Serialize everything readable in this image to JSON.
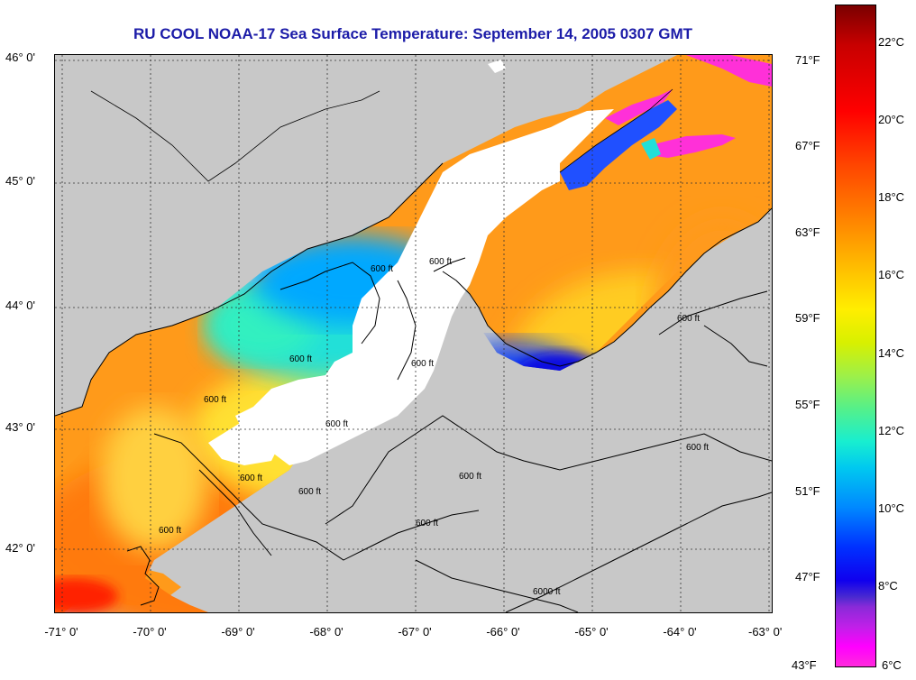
{
  "title": "RU COOL  NOAA-17  Sea Surface Temperature:  September 14, 2005 0307 GMT",
  "latitude_labels": [
    "46° 0'",
    "45° 0'",
    "44° 0'",
    "43° 0'",
    "42° 0'"
  ],
  "longitude_labels": [
    "-71° 0'",
    "-70° 0'",
    "-69° 0'",
    "-68° 0'",
    "-67° 0'",
    "-66° 0'",
    "-65° 0'",
    "-64° 0'",
    "-63° 0'"
  ],
  "colorbar": {
    "fahrenheit_labels": [
      "71°F",
      "67°F",
      "63°F",
      "59°F",
      "55°F",
      "51°F",
      "47°F",
      "43°F"
    ],
    "celsius_labels": [
      "22°C",
      "20°C",
      "18°C",
      "16°C",
      "14°C",
      "12°C",
      "10°C",
      "8°C",
      "6°C"
    ]
  },
  "contours": {
    "label_600": "600 ft",
    "label_6000": "6000 ft"
  },
  "colors": {
    "land": "#c8c8c8",
    "cloud": "#ffffff",
    "title": "#1c1ca8",
    "warm": "#ff8c00",
    "cold": "#0030ff"
  }
}
